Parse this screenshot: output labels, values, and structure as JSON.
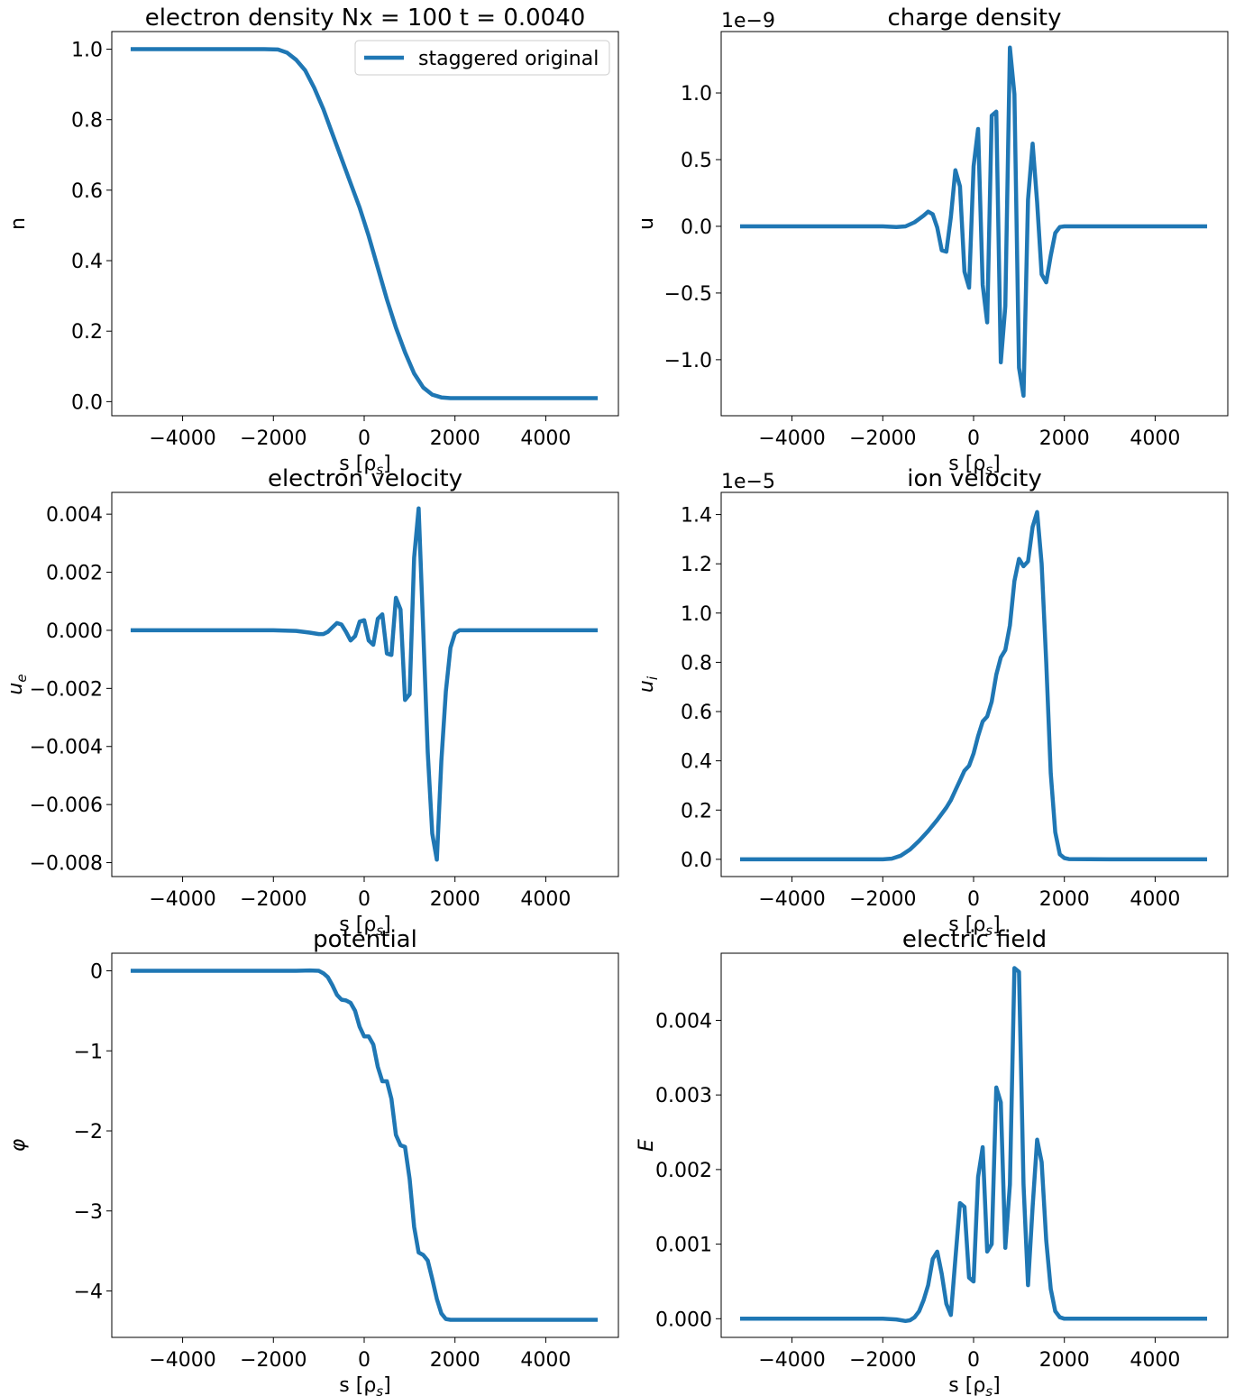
{
  "figure": {
    "line_color": "#1f77b4"
  },
  "chart_data": [
    {
      "id": "density",
      "type": "line",
      "title": "electron density Nx = 100 t =   0.0040",
      "xlabel": "s [ρ",
      "xlabel_sub": "s",
      "xlabel_tail": "]",
      "ylabel": "n",
      "ylabel_sub": "",
      "ylabel_italic": false,
      "offset_text": "",
      "xlim": [
        -5560,
        5600
      ],
      "ylim": [
        -0.04,
        1.05
      ],
      "xticks": [
        -4000,
        -2000,
        0,
        2000,
        4000
      ],
      "xtick_labels": [
        "−4000",
        "−2000",
        "0",
        "2000",
        "4000"
      ],
      "yticks": [
        0.0,
        0.2,
        0.4,
        0.6,
        0.8,
        1.0
      ],
      "ytick_labels": [
        "0.0",
        "0.2",
        "0.4",
        "0.6",
        "0.8",
        "1.0"
      ],
      "legend": {
        "position": "top-right",
        "entries": [
          "staggered original"
        ]
      },
      "series": [
        {
          "name": "staggered original",
          "x": [
            -5100,
            -4000,
            -3000,
            -2200,
            -1900,
            -1700,
            -1500,
            -1300,
            -1100,
            -900,
            -700,
            -500,
            -300,
            -100,
            0,
            100,
            300,
            500,
            700,
            900,
            1100,
            1300,
            1500,
            1700,
            1900,
            2100,
            3000,
            4000,
            5100
          ],
          "y": [
            1.0,
            1.0,
            1.0,
            1.0,
            0.999,
            0.99,
            0.97,
            0.94,
            0.89,
            0.83,
            0.76,
            0.69,
            0.62,
            0.55,
            0.51,
            0.47,
            0.38,
            0.29,
            0.21,
            0.14,
            0.08,
            0.04,
            0.02,
            0.012,
            0.01,
            0.01,
            0.01,
            0.01,
            0.01
          ]
        }
      ]
    },
    {
      "id": "charge",
      "type": "line",
      "title": "charge density",
      "xlabel": "s [ρ",
      "xlabel_sub": "s",
      "xlabel_tail": "]",
      "ylabel": "u",
      "ylabel_sub": "",
      "ylabel_italic": false,
      "offset_text": "1e−9",
      "xlim": [
        -5560,
        5600
      ],
      "ylim": [
        -1.42,
        1.46
      ],
      "xticks": [
        -4000,
        -2000,
        0,
        2000,
        4000
      ],
      "xtick_labels": [
        "−4000",
        "−2000",
        "0",
        "2000",
        "4000"
      ],
      "yticks": [
        -1.0,
        -0.5,
        0.0,
        0.5,
        1.0
      ],
      "ytick_labels": [
        "−1.0",
        "−0.5",
        "0.0",
        "0.5",
        "1.0"
      ],
      "legend": null,
      "series": [
        {
          "name": "",
          "x": [
            -5100,
            -2000,
            -1700,
            -1500,
            -1300,
            -1100,
            -1000,
            -900,
            -800,
            -700,
            -600,
            -500,
            -400,
            -300,
            -200,
            -100,
            0,
            100,
            200,
            300,
            400,
            500,
            600,
            700,
            800,
            900,
            1000,
            1100,
            1200,
            1300,
            1400,
            1500,
            1600,
            1700,
            1800,
            1900,
            2000,
            2100,
            3000,
            4000,
            5100
          ],
          "y": [
            0,
            0,
            -0.005,
            0.0,
            0.03,
            0.08,
            0.11,
            0.09,
            -0.01,
            -0.18,
            -0.19,
            0.07,
            0.42,
            0.3,
            -0.34,
            -0.46,
            0.45,
            0.73,
            -0.44,
            -0.72,
            0.83,
            0.86,
            -1.02,
            -0.6,
            1.34,
            0.99,
            -1.06,
            -1.27,
            0.2,
            0.62,
            0.18,
            -0.36,
            -0.42,
            -0.22,
            -0.05,
            -0.005,
            0,
            0,
            0,
            0,
            0
          ]
        }
      ]
    },
    {
      "id": "ue",
      "type": "line",
      "title": "electron velocity",
      "xlabel": "s [ρ",
      "xlabel_sub": "s",
      "xlabel_tail": "]",
      "ylabel": "u",
      "ylabel_sub": "e",
      "ylabel_italic": true,
      "offset_text": "",
      "xlim": [
        -5560,
        5600
      ],
      "ylim": [
        -0.00848,
        0.00475
      ],
      "xticks": [
        -4000,
        -2000,
        0,
        2000,
        4000
      ],
      "xtick_labels": [
        "−4000",
        "−2000",
        "0",
        "2000",
        "4000"
      ],
      "yticks": [
        -0.008,
        -0.006,
        -0.004,
        -0.002,
        0.0,
        0.002,
        0.004
      ],
      "ytick_labels": [
        "−0.008",
        "−0.006",
        "−0.004",
        "−0.002",
        "0.000",
        "0.002",
        "0.004"
      ],
      "legend": null,
      "series": [
        {
          "name": "",
          "x": [
            -5100,
            -2000,
            -1500,
            -1200,
            -1000,
            -900,
            -800,
            -700,
            -600,
            -500,
            -400,
            -300,
            -200,
            -100,
            0,
            100,
            200,
            300,
            400,
            500,
            600,
            700,
            800,
            900,
            1000,
            1100,
            1200,
            1300,
            1400,
            1500,
            1600,
            1700,
            1800,
            1900,
            2000,
            2100,
            3000,
            4000,
            5100
          ],
          "y": [
            0,
            0,
            -2e-05,
            -8e-05,
            -0.00013,
            -0.00013,
            -5e-05,
            0.0001,
            0.00025,
            0.0002,
            -5e-05,
            -0.00035,
            -0.0002,
            0.0003,
            0.00035,
            -0.00035,
            -0.0005,
            0.0004,
            0.00055,
            -0.0008,
            -0.00085,
            0.00112,
            0.00072,
            -0.0024,
            -0.0022,
            0.0025,
            0.0042,
            0.0,
            -0.0042,
            -0.007,
            -0.0079,
            -0.0045,
            -0.0021,
            -0.0006,
            -0.0001,
            0.0,
            0,
            0,
            0
          ]
        }
      ]
    },
    {
      "id": "ui",
      "type": "line",
      "title": "ion velocity",
      "xlabel": "s [ρ",
      "xlabel_sub": "s",
      "xlabel_tail": "]",
      "ylabel": "u",
      "ylabel_sub": "i",
      "ylabel_italic": true,
      "offset_text": "1e−5",
      "xlim": [
        -5560,
        5600
      ],
      "ylim": [
        -0.07,
        1.49
      ],
      "xticks": [
        -4000,
        -2000,
        0,
        2000,
        4000
      ],
      "xtick_labels": [
        "−4000",
        "−2000",
        "0",
        "2000",
        "4000"
      ],
      "yticks": [
        0.0,
        0.2,
        0.4,
        0.6,
        0.8,
        1.0,
        1.2,
        1.4
      ],
      "ytick_labels": [
        "0.0",
        "0.2",
        "0.4",
        "0.6",
        "0.8",
        "1.0",
        "1.2",
        "1.4"
      ],
      "legend": null,
      "series": [
        {
          "name": "",
          "x": [
            -5100,
            -2200,
            -2000,
            -1800,
            -1600,
            -1400,
            -1200,
            -1000,
            -800,
            -600,
            -500,
            -400,
            -300,
            -200,
            -100,
            0,
            100,
            200,
            300,
            400,
            500,
            600,
            700,
            800,
            900,
            1000,
            1100,
            1200,
            1300,
            1400,
            1500,
            1600,
            1700,
            1800,
            1900,
            2000,
            2100,
            3000,
            4000,
            5100
          ],
          "y": [
            0,
            0,
            0.0,
            0.003,
            0.015,
            0.04,
            0.075,
            0.115,
            0.16,
            0.21,
            0.24,
            0.28,
            0.32,
            0.36,
            0.38,
            0.43,
            0.5,
            0.56,
            0.58,
            0.64,
            0.75,
            0.82,
            0.85,
            0.95,
            1.13,
            1.22,
            1.19,
            1.21,
            1.35,
            1.41,
            1.2,
            0.8,
            0.35,
            0.11,
            0.02,
            0.005,
            0.001,
            0,
            0,
            0
          ]
        }
      ]
    },
    {
      "id": "phi",
      "type": "line",
      "title": "potential",
      "xlabel": "s [ρ",
      "xlabel_sub": "s",
      "xlabel_tail": "]",
      "ylabel": "φ",
      "ylabel_sub": "",
      "ylabel_italic": true,
      "offset_text": "",
      "xlim": [
        -5560,
        5600
      ],
      "ylim": [
        -4.58,
        0.22
      ],
      "xticks": [
        -4000,
        -2000,
        0,
        2000,
        4000
      ],
      "xtick_labels": [
        "−4000",
        "−2000",
        "0",
        "2000",
        "4000"
      ],
      "yticks": [
        -4,
        -3,
        -2,
        -1,
        0
      ],
      "ytick_labels": [
        "−4",
        "−3",
        "−2",
        "−1",
        "0"
      ],
      "legend": null,
      "series": [
        {
          "name": "",
          "x": [
            -5100,
            -2000,
            -1500,
            -1200,
            -1000,
            -900,
            -800,
            -700,
            -600,
            -500,
            -400,
            -300,
            -200,
            -100,
            0,
            100,
            200,
            300,
            400,
            500,
            600,
            700,
            800,
            900,
            1000,
            1100,
            1200,
            1300,
            1400,
            1500,
            1600,
            1700,
            1800,
            1900,
            2000,
            2100,
            3000,
            4000,
            5100
          ],
          "y": [
            0,
            0,
            0.0,
            0.005,
            0.0,
            -0.03,
            -0.08,
            -0.18,
            -0.3,
            -0.36,
            -0.37,
            -0.4,
            -0.5,
            -0.7,
            -0.82,
            -0.82,
            -0.92,
            -1.2,
            -1.38,
            -1.38,
            -1.6,
            -2.05,
            -2.18,
            -2.2,
            -2.6,
            -3.2,
            -3.52,
            -3.55,
            -3.62,
            -3.85,
            -4.1,
            -4.28,
            -4.35,
            -4.36,
            -4.36,
            -4.36,
            -4.36,
            -4.36,
            -4.36
          ]
        }
      ]
    },
    {
      "id": "efield",
      "type": "line",
      "title": "electric field",
      "xlabel": "s [ρ",
      "xlabel_sub": "s",
      "xlabel_tail": "]",
      "ylabel": "E",
      "ylabel_sub": "",
      "ylabel_italic": true,
      "offset_text": "",
      "xlim": [
        -5560,
        5600
      ],
      "ylim": [
        -0.00025,
        0.0049
      ],
      "xticks": [
        -4000,
        -2000,
        0,
        2000,
        4000
      ],
      "xtick_labels": [
        "−4000",
        "−2000",
        "0",
        "2000",
        "4000"
      ],
      "yticks": [
        0.0,
        0.001,
        0.002,
        0.003,
        0.004
      ],
      "ytick_labels": [
        "0.000",
        "0.001",
        "0.002",
        "0.003",
        "0.004"
      ],
      "legend": null,
      "series": [
        {
          "name": "",
          "x": [
            -5100,
            -2000,
            -1700,
            -1500,
            -1400,
            -1300,
            -1200,
            -1100,
            -1000,
            -900,
            -800,
            -700,
            -600,
            -500,
            -400,
            -300,
            -200,
            -100,
            0,
            100,
            200,
            300,
            400,
            500,
            600,
            700,
            800,
            900,
            1000,
            1100,
            1200,
            1300,
            1400,
            1500,
            1600,
            1700,
            1800,
            1900,
            2000,
            2100,
            3000,
            4000,
            5100
          ],
          "y": [
            0,
            0,
            -1e-05,
            -3e-05,
            -2e-05,
            2e-05,
            0.0001,
            0.00025,
            0.00045,
            0.0008,
            0.0009,
            0.0006,
            0.0002,
            5e-05,
            0.0008,
            0.00155,
            0.0015,
            0.00055,
            0.0005,
            0.0019,
            0.0023,
            0.0009,
            0.001,
            0.0031,
            0.0029,
            0.00095,
            0.0018,
            0.0047,
            0.00465,
            0.0018,
            0.00045,
            0.0015,
            0.0024,
            0.0021,
            0.00105,
            0.0004,
            0.0001,
            2e-05,
            0,
            0,
            0,
            0,
            0
          ]
        }
      ]
    }
  ]
}
